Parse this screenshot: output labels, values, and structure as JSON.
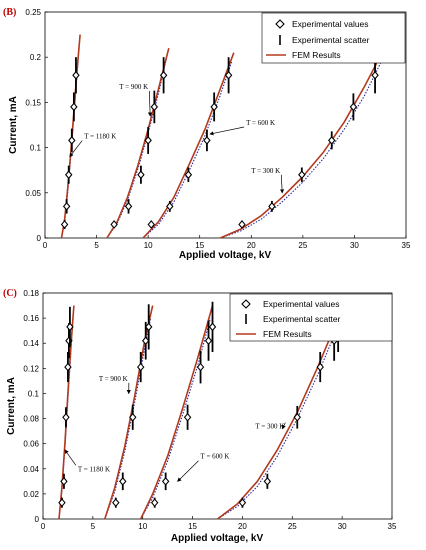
{
  "chart_data": [
    {
      "type": "line",
      "panel_label": "(B)",
      "xlabel": "Applied voltage, kV",
      "ylabel": "Current, mA",
      "xlim": [
        0,
        35
      ],
      "ylim": [
        0,
        0.25
      ],
      "xticks": [
        0,
        5,
        10,
        15,
        20,
        25,
        30,
        35
      ],
      "yticks": [
        0,
        0.05,
        0.1,
        0.15,
        0.2,
        0.25
      ],
      "ytick_labels": [
        "0",
        "0.05",
        "0.1",
        "0.15",
        "0.2",
        "0.25"
      ],
      "legend": {
        "position": "top-right",
        "entries": [
          "Experimental values",
          "Experimental scatter",
          "FEM Results"
        ]
      },
      "colors": {
        "fem": "#b23a1e",
        "dotted": "#2a2aa0",
        "marker": "#000000"
      },
      "series": [
        {
          "name": "T = 1180 K",
          "exp_x": [
            1.9,
            2.1,
            2.3,
            2.6,
            2.8,
            3.0
          ],
          "exp_y": [
            0.015,
            0.035,
            0.07,
            0.108,
            0.145,
            0.18
          ],
          "scatter_err": [
            0.005,
            0.008,
            0.01,
            0.013,
            0.016,
            0.02
          ],
          "fem_x": [
            1.6,
            1.9,
            2.2,
            2.5,
            2.8,
            3.1,
            3.4
          ],
          "fem_y": [
            0.0,
            0.02,
            0.055,
            0.095,
            0.14,
            0.185,
            0.225
          ],
          "dotted_x": [
            1.6,
            1.9,
            2.2,
            2.5,
            2.8,
            3.1,
            3.3
          ],
          "dotted_y": [
            0.0,
            0.018,
            0.05,
            0.09,
            0.135,
            0.18,
            0.21
          ],
          "annotation": {
            "text": "T = 1180 K",
            "x": 3.8,
            "y": 0.11,
            "arrow_x": 2.4,
            "arrow_y": 0.09
          }
        },
        {
          "name": "T = 900 K",
          "exp_x": [
            6.7,
            8.1,
            9.3,
            10.0,
            10.6,
            11.5
          ],
          "exp_y": [
            0.015,
            0.035,
            0.07,
            0.108,
            0.145,
            0.18
          ],
          "scatter_err": [
            0.004,
            0.008,
            0.01,
            0.015,
            0.018,
            0.02
          ],
          "fem_x": [
            6.0,
            7.0,
            8.0,
            9.0,
            10.0,
            11.0,
            12.0
          ],
          "fem_y": [
            0.0,
            0.018,
            0.045,
            0.08,
            0.12,
            0.165,
            0.21
          ],
          "dotted_x": [
            6.0,
            7.0,
            8.0,
            9.0,
            10.0,
            11.0,
            11.8
          ],
          "dotted_y": [
            0.0,
            0.016,
            0.042,
            0.076,
            0.116,
            0.16,
            0.2
          ],
          "annotation": {
            "text": "T = 900 K",
            "x": 7.2,
            "y": 0.165,
            "arrow_x": 10.2,
            "arrow_y": 0.135
          }
        },
        {
          "name": "T = 600 K",
          "exp_x": [
            10.3,
            12.1,
            13.9,
            15.7,
            16.4,
            17.8
          ],
          "exp_y": [
            0.015,
            0.035,
            0.07,
            0.108,
            0.145,
            0.18
          ],
          "scatter_err": [
            0.004,
            0.006,
            0.008,
            0.012,
            0.016,
            0.02
          ],
          "fem_x": [
            9.5,
            11.0,
            12.5,
            14.0,
            15.5,
            17.0,
            18.3
          ],
          "fem_y": [
            0.0,
            0.018,
            0.045,
            0.082,
            0.12,
            0.165,
            0.205
          ],
          "dotted_x": [
            9.5,
            11.0,
            12.5,
            14.0,
            15.5,
            17.0,
            18.1
          ],
          "dotted_y": [
            0.0,
            0.015,
            0.04,
            0.075,
            0.113,
            0.158,
            0.195
          ],
          "annotation": {
            "text": "T = 600 K",
            "x": 19.5,
            "y": 0.125,
            "arrow_x": 16.0,
            "arrow_y": 0.115
          }
        },
        {
          "name": "T = 300 K",
          "exp_x": [
            19.1,
            22.0,
            24.9,
            27.8,
            29.9,
            32.0
          ],
          "exp_y": [
            0.015,
            0.035,
            0.07,
            0.108,
            0.145,
            0.18
          ],
          "scatter_err": [
            0.004,
            0.006,
            0.008,
            0.01,
            0.015,
            0.02
          ],
          "fem_x": [
            17.0,
            19.0,
            21.0,
            23.0,
            25.0,
            27.0,
            29.0,
            31.0,
            33.0
          ],
          "fem_y": [
            0.0,
            0.01,
            0.025,
            0.045,
            0.068,
            0.095,
            0.128,
            0.168,
            0.212
          ],
          "dotted_x": [
            17.0,
            19.0,
            21.0,
            23.0,
            25.0,
            27.0,
            29.0,
            31.0,
            32.6
          ],
          "dotted_y": [
            0.0,
            0.008,
            0.021,
            0.04,
            0.062,
            0.088,
            0.12,
            0.158,
            0.195
          ],
          "annotation": {
            "text": "T = 300 K",
            "x": 20.0,
            "y": 0.072,
            "arrow_x": 23.0,
            "arrow_y": 0.05
          }
        }
      ]
    },
    {
      "type": "line",
      "panel_label": "(C)",
      "xlabel": "Applied voltage, kV",
      "ylabel": "Current, mA",
      "xlim": [
        0,
        35
      ],
      "ylim": [
        0,
        0.18
      ],
      "xticks": [
        0,
        5,
        10,
        15,
        20,
        25,
        30,
        35
      ],
      "yticks": [
        0,
        0.02,
        0.04,
        0.06,
        0.08,
        0.1,
        0.12,
        0.14,
        0.16,
        0.18
      ],
      "ytick_labels": [
        "0",
        "0.02",
        "0.04",
        "0.06",
        "0.08",
        "0.1",
        "0.12",
        "0.14",
        "0.16",
        "0.18"
      ],
      "legend": {
        "position": "top-right",
        "entries": [
          "Experimental values",
          "Experimental scatter",
          "FEM Results"
        ]
      },
      "colors": {
        "fem": "#b23a1e",
        "dotted": "#2a2aa0",
        "marker": "#000000"
      },
      "series": [
        {
          "name": "T = 1180 K",
          "exp_x": [
            1.9,
            2.1,
            2.3,
            2.5,
            2.6,
            2.7
          ],
          "exp_y": [
            0.013,
            0.03,
            0.081,
            0.121,
            0.142,
            0.153
          ],
          "scatter_err": [
            0.004,
            0.006,
            0.008,
            0.012,
            0.014,
            0.016
          ],
          "fem_x": [
            1.6,
            1.9,
            2.2,
            2.5,
            2.8,
            3.1
          ],
          "fem_y": [
            0.0,
            0.025,
            0.06,
            0.1,
            0.138,
            0.17
          ],
          "dotted_x": [
            1.6,
            1.9,
            2.2,
            2.5,
            2.8,
            3.0
          ],
          "dotted_y": [
            0.0,
            0.022,
            0.056,
            0.095,
            0.133,
            0.16
          ],
          "annotation": {
            "text": "T = 1180 K",
            "x": 3.5,
            "y": 0.038,
            "arrow_x": 2.2,
            "arrow_y": 0.055
          }
        },
        {
          "name": "T = 900 K",
          "exp_x": [
            7.3,
            8.0,
            9.0,
            9.8,
            10.3,
            10.6
          ],
          "exp_y": [
            0.013,
            0.03,
            0.081,
            0.121,
            0.142,
            0.153
          ],
          "scatter_err": [
            0.004,
            0.007,
            0.01,
            0.012,
            0.015,
            0.018
          ],
          "fem_x": [
            6.2,
            7.2,
            8.2,
            9.2,
            10.2,
            11.0
          ],
          "fem_y": [
            0.0,
            0.025,
            0.058,
            0.098,
            0.142,
            0.17
          ],
          "dotted_x": [
            6.2,
            7.2,
            8.2,
            9.2,
            10.2,
            10.8
          ],
          "dotted_y": [
            0.0,
            0.022,
            0.054,
            0.093,
            0.136,
            0.16
          ],
          "annotation": {
            "text": "T = 900 K",
            "x": 5.6,
            "y": 0.11,
            "arrow_x": 8.6,
            "arrow_y": 0.1
          }
        },
        {
          "name": "T = 600 K",
          "exp_x": [
            11.2,
            12.3,
            14.5,
            15.8,
            16.6,
            17.0
          ],
          "exp_y": [
            0.013,
            0.03,
            0.081,
            0.121,
            0.142,
            0.153
          ],
          "scatter_err": [
            0.004,
            0.007,
            0.01,
            0.013,
            0.016,
            0.02
          ],
          "fem_x": [
            9.8,
            11.0,
            12.5,
            14.0,
            15.5,
            17.0
          ],
          "fem_y": [
            0.0,
            0.02,
            0.05,
            0.088,
            0.128,
            0.17
          ],
          "dotted_x": [
            9.8,
            11.0,
            12.5,
            14.0,
            15.5,
            16.8
          ],
          "dotted_y": [
            0.0,
            0.017,
            0.046,
            0.083,
            0.122,
            0.16
          ],
          "annotation": {
            "text": "T = 600 K",
            "x": 15.8,
            "y": 0.048,
            "arrow_x": 13.5,
            "arrow_y": 0.03
          }
        },
        {
          "name": "T = 300 K",
          "exp_x": [
            20.0,
            22.5,
            25.5,
            27.8,
            29.2,
            29.6
          ],
          "exp_y": [
            0.013,
            0.03,
            0.081,
            0.121,
            0.142,
            0.153
          ],
          "scatter_err": [
            0.004,
            0.006,
            0.009,
            0.012,
            0.016,
            0.02
          ],
          "fem_x": [
            17.5,
            19.5,
            21.5,
            23.5,
            25.5,
            27.5,
            29.5,
            30.2
          ],
          "fem_y": [
            0.0,
            0.012,
            0.03,
            0.055,
            0.085,
            0.12,
            0.158,
            0.17
          ],
          "dotted_x": [
            17.5,
            19.5,
            21.5,
            23.5,
            25.5,
            27.5,
            29.5,
            30.0
          ],
          "dotted_y": [
            0.0,
            0.01,
            0.026,
            0.05,
            0.08,
            0.114,
            0.152,
            0.162
          ],
          "annotation": {
            "text": "T = 300 K",
            "x": 21.3,
            "y": 0.072,
            "arrow_x": 24.0,
            "arrow_y": 0.072
          }
        }
      ]
    }
  ]
}
